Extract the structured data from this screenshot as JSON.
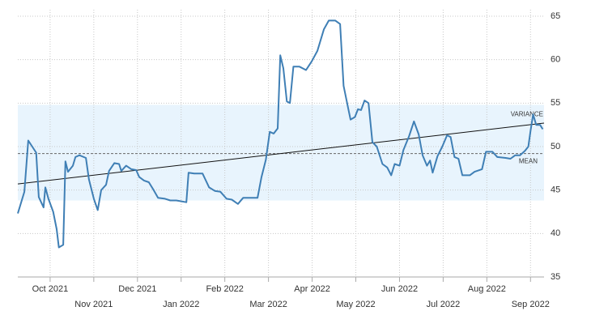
{
  "chart_data": {
    "type": "line",
    "x": [
      0.26,
      0.41,
      0.5,
      0.59,
      0.68,
      0.74,
      0.85,
      0.89,
      0.96,
      1.07,
      1.15,
      1.2,
      1.3,
      1.35,
      1.41,
      1.52,
      1.58,
      1.67,
      1.82,
      1.89,
      2.0,
      2.09,
      2.17,
      2.28,
      2.35,
      2.47,
      2.58,
      2.63,
      2.74,
      2.86,
      2.97,
      3.04,
      3.15,
      3.26,
      3.37,
      3.47,
      3.63,
      3.75,
      3.89,
      4.12,
      4.17,
      4.3,
      4.49,
      4.64,
      4.77,
      4.9,
      5.04,
      5.16,
      5.3,
      5.42,
      5.75,
      5.84,
      5.94,
      6.03,
      6.12,
      6.21,
      6.27,
      6.34,
      6.42,
      6.49,
      6.57,
      6.71,
      6.86,
      6.99,
      7.12,
      7.27,
      7.38,
      7.53,
      7.64,
      7.72,
      7.83,
      7.88,
      7.98,
      8.05,
      8.12,
      8.2,
      8.29,
      8.38,
      8.48,
      8.61,
      8.72,
      8.81,
      8.89,
      9.0,
      9.09,
      9.22,
      9.33,
      9.44,
      9.53,
      9.63,
      9.7,
      9.76,
      9.87,
      9.98,
      10.09,
      10.17,
      10.26,
      10.35,
      10.44,
      10.61,
      10.72,
      10.89,
      10.98,
      11.13,
      11.24,
      11.43,
      11.54,
      11.65,
      11.76,
      11.87,
      11.95,
      12.0,
      12.06,
      12.13,
      12.22,
      12.28
    ],
    "series": [
      {
        "color": "#3f7fb5",
        "values": [
          42.3,
          44.8,
          50.7,
          50.0,
          49.3,
          44.2,
          43.0,
          45.3,
          44.0,
          42.5,
          40.5,
          38.4,
          38.7,
          48.3,
          47.1,
          47.8,
          48.8,
          49.0,
          48.7,
          46.2,
          44.0,
          42.7,
          45.0,
          45.6,
          47.2,
          48.1,
          48.0,
          47.2,
          47.8,
          47.4,
          47.3,
          46.5,
          46.1,
          45.9,
          45.0,
          44.1,
          44.0,
          43.8,
          43.8,
          43.6,
          47.0,
          46.9,
          46.9,
          45.3,
          44.9,
          44.8,
          44.0,
          43.9,
          43.4,
          44.1,
          44.1,
          46.5,
          48.5,
          51.7,
          51.5,
          52.1,
          60.5,
          59.0,
          55.2,
          55.0,
          59.2,
          59.2,
          58.8,
          59.8,
          61.0,
          63.5,
          64.5,
          64.5,
          64.1,
          57.0,
          54.3,
          53.1,
          53.4,
          54.3,
          54.2,
          55.3,
          55.0,
          50.5,
          50.0,
          48.0,
          47.6,
          46.7,
          48.0,
          47.8,
          49.6,
          51.2,
          52.9,
          51.4,
          49.0,
          47.8,
          48.4,
          47.0,
          48.9,
          50.0,
          51.3,
          51.1,
          48.8,
          48.6,
          46.7,
          46.7,
          47.1,
          47.4,
          49.4,
          49.4,
          48.8,
          48.7,
          48.6,
          49.0,
          49.0,
          49.5,
          50.0,
          51.8,
          53.7,
          52.5,
          52.5,
          52.0
        ]
      }
    ],
    "xlim": [
      0.26,
      12.31
    ],
    "xticks": [
      {
        "value": 1,
        "label": "Oct 2021"
      },
      {
        "value": 2,
        "label": "Nov 2021"
      },
      {
        "value": 3,
        "label": "Dec 2021"
      },
      {
        "value": 4,
        "label": "Jan 2022"
      },
      {
        "value": 5,
        "label": "Feb 2022"
      },
      {
        "value": 6,
        "label": "Mar 2022"
      },
      {
        "value": 7,
        "label": "Apr 2022"
      },
      {
        "value": 8,
        "label": "May 2022"
      },
      {
        "value": 9,
        "label": "Jun 2022"
      },
      {
        "value": 10,
        "label": "Jul 2022"
      },
      {
        "value": 11,
        "label": "Aug 2022"
      },
      {
        "value": 12,
        "label": "Sep 2022"
      }
    ],
    "ylim": [
      35,
      65
    ],
    "yticks": [
      35,
      40,
      45,
      50,
      55,
      60,
      65
    ],
    "grid": true,
    "variance": {
      "label": "VARIANCE",
      "range": [
        43.8,
        54.8
      ],
      "color": "#e8f4fd"
    },
    "mean": {
      "label": "MEAN",
      "value": 49.2
    },
    "trend": {
      "x": [
        0.26,
        12.31
      ],
      "values": [
        45.7,
        52.7
      ]
    }
  }
}
